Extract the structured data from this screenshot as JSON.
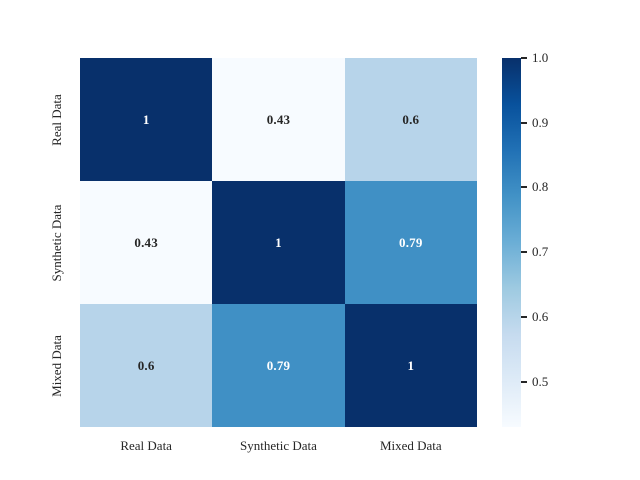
{
  "figure": {
    "background_color": "#ffffff",
    "text_color": "#262626"
  },
  "chart_data": {
    "type": "heatmap",
    "title": "",
    "xlabel": "",
    "ylabel": "",
    "categories": [
      "Real Data",
      "Synthetic Data",
      "Mixed Data"
    ],
    "matrix": [
      [
        1,
        0.43,
        0.6
      ],
      [
        0.43,
        1,
        0.79
      ],
      [
        0.6,
        0.79,
        1
      ]
    ],
    "cell_labels": [
      [
        "1",
        "0.43",
        "0.6"
      ],
      [
        "0.43",
        "1",
        "0.79"
      ],
      [
        "0.6",
        "0.79",
        "1"
      ]
    ],
    "cell_colors": [
      [
        "#08306b",
        "#f7fbff",
        "#b7d4ea"
      ],
      [
        "#f7fbff",
        "#08306b",
        "#4090c5"
      ],
      [
        "#b7d4ea",
        "#4090c5",
        "#08306b"
      ]
    ],
    "cell_text_colors": [
      [
        "#ffffff",
        "#262626",
        "#262626"
      ],
      [
        "#262626",
        "#ffffff",
        "#ffffff"
      ],
      [
        "#262626",
        "#ffffff",
        "#ffffff"
      ]
    ],
    "colormap": "Blues",
    "vmin": 0.43,
    "vmax": 1.0,
    "grid": false,
    "legend_position": "right-colorbar",
    "colorbar": {
      "tick_values": [
        1.0,
        0.9,
        0.8,
        0.7,
        0.6,
        0.5
      ],
      "tick_labels": [
        "1.0",
        "0.9",
        "0.8",
        "0.7",
        "0.6",
        "0.5"
      ],
      "gradient_stops_bottom_to_top": [
        "#f7fbff",
        "#deebf7",
        "#c6dbef",
        "#9ecae1",
        "#6baed6",
        "#4292c6",
        "#2171b5",
        "#08519c",
        "#08306b"
      ]
    }
  }
}
